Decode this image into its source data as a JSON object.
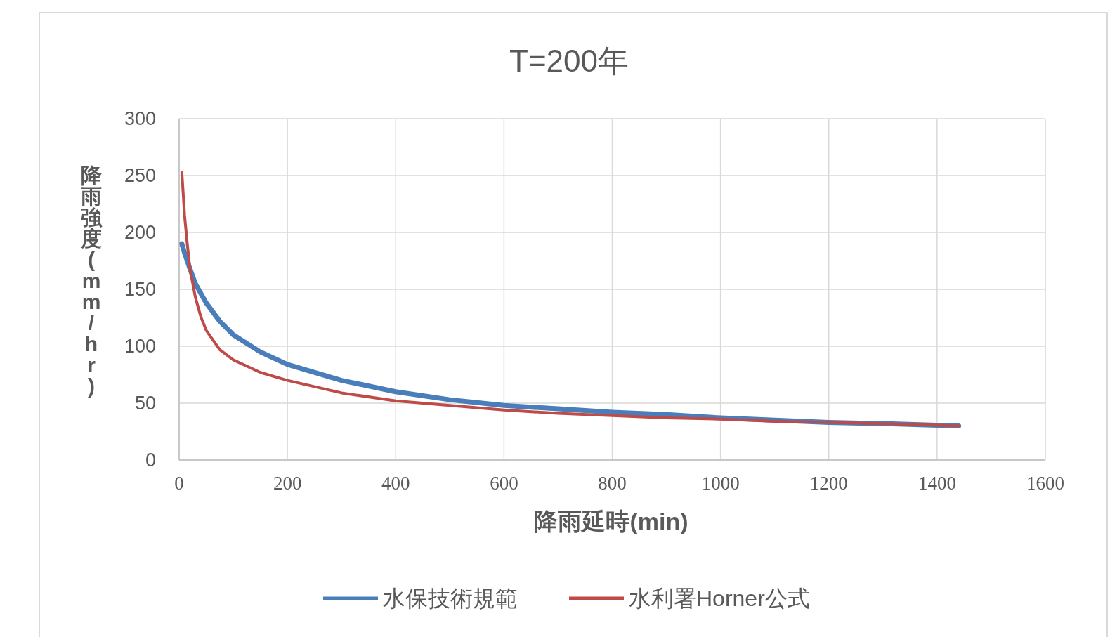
{
  "chart_data": {
    "type": "line",
    "title": "T=200年",
    "xlabel": "降雨延時(min)",
    "ylabel": "降雨強度(mm/hr)",
    "xlim": [
      0,
      1600
    ],
    "xticks": [
      0,
      200,
      400,
      600,
      800,
      1000,
      1200,
      1400,
      1600
    ],
    "ylim": [
      0,
      300
    ],
    "yticks": [
      0,
      50,
      100,
      150,
      200,
      250,
      300
    ],
    "grid": true,
    "legend": "bottom",
    "marker": "none",
    "line_style": "solid",
    "series": [
      {
        "name": "水保技術規範",
        "color": "#4a7ebb",
        "x": [
          5,
          10,
          20,
          30,
          50,
          75,
          100,
          150,
          200,
          300,
          400,
          500,
          600,
          700,
          800,
          900,
          1000,
          1100,
          1200,
          1300,
          1440
        ],
        "values": [
          190,
          182,
          168,
          155,
          138,
          122,
          110,
          95,
          84,
          70,
          60,
          53,
          48,
          45,
          42,
          40,
          37,
          35,
          33,
          32,
          30
        ]
      },
      {
        "name": "水利署Horner公式",
        "color": "#be4b48",
        "x": [
          5,
          10,
          15,
          20,
          30,
          40,
          50,
          75,
          100,
          150,
          200,
          300,
          400,
          500,
          600,
          700,
          800,
          900,
          1000,
          1100,
          1200,
          1300,
          1440
        ],
        "values": [
          253,
          215,
          190,
          168,
          143,
          126,
          114,
          97,
          88,
          77,
          70,
          59,
          52,
          48,
          44,
          41,
          39,
          37,
          36,
          34,
          33,
          32,
          30
        ]
      }
    ]
  }
}
